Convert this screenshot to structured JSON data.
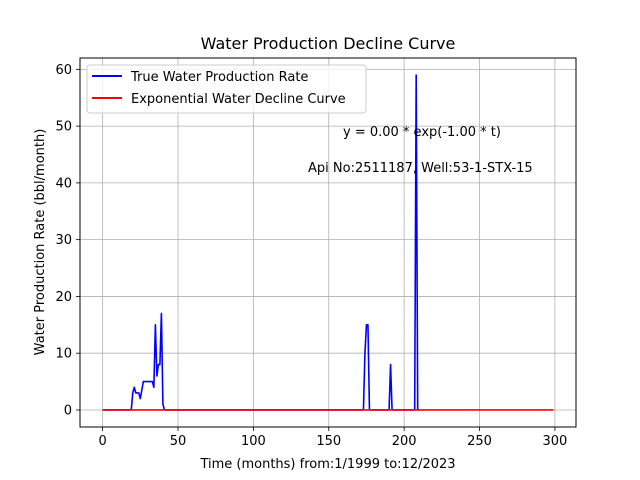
{
  "chart_data": {
    "type": "line",
    "title": "Water Production Decline Curve",
    "xlabel": "Time (months) from:1/1999 to:12/2023",
    "ylabel": "Water Production Rate (bbl/month)",
    "xlim": [
      -15,
      314
    ],
    "ylim": [
      -3,
      62
    ],
    "xticks": [
      0,
      50,
      100,
      150,
      200,
      250,
      300
    ],
    "yticks": [
      0,
      10,
      20,
      30,
      40,
      50,
      60
    ],
    "grid": true,
    "legend_position": "top-left",
    "annotations": [
      "y = 0.00 * exp(-1.00 * t)",
      "Api No:2511187, Well:53-1-STX-15"
    ],
    "series": [
      {
        "name": "True Water Production Rate",
        "color": "#0000ff",
        "points": [
          [
            0,
            0
          ],
          [
            19,
            0
          ],
          [
            20,
            3
          ],
          [
            21,
            4
          ],
          [
            22,
            3
          ],
          [
            24,
            3
          ],
          [
            25,
            2
          ],
          [
            27,
            5
          ],
          [
            28,
            5
          ],
          [
            30,
            5
          ],
          [
            31,
            5
          ],
          [
            33,
            5
          ],
          [
            34,
            4
          ],
          [
            35,
            15
          ],
          [
            36,
            6
          ],
          [
            37,
            8
          ],
          [
            38,
            8
          ],
          [
            39,
            17
          ],
          [
            40,
            1
          ],
          [
            41,
            0
          ],
          [
            173,
            0
          ],
          [
            174,
            10
          ],
          [
            175,
            15
          ],
          [
            176,
            15
          ],
          [
            177,
            0
          ],
          [
            190,
            0
          ],
          [
            191,
            8
          ],
          [
            192,
            0
          ],
          [
            207,
            0
          ],
          [
            208,
            59
          ],
          [
            209,
            0
          ],
          [
            210,
            0
          ]
        ]
      },
      {
        "name": "Exponential Water Decline Curve",
        "color": "#ff0000",
        "points": [
          [
            0,
            0
          ],
          [
            299,
            0
          ]
        ]
      }
    ]
  }
}
